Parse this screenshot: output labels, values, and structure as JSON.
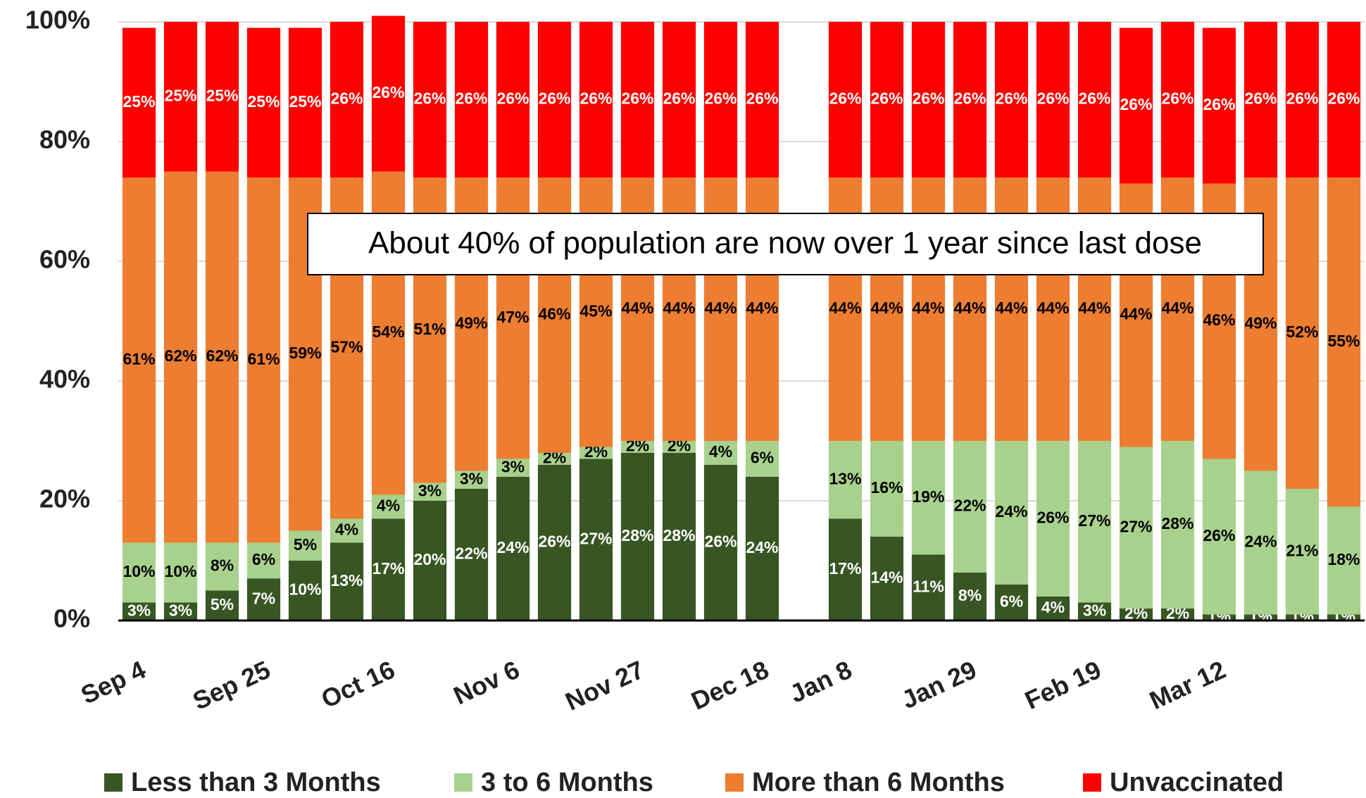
{
  "chart_data": {
    "type": "stacked_bar",
    "annotation": "About 40% of population are now over 1 year since last dose",
    "categories": [
      "Sep 4",
      null,
      null,
      "Sep 25",
      null,
      null,
      "Oct 16",
      null,
      null,
      "Nov 6",
      null,
      null,
      "Nov 27",
      null,
      null,
      "Dec 18",
      null,
      "Jan 8",
      null,
      null,
      "Jan 29",
      null,
      null,
      "Feb 19",
      null,
      null,
      "Mar 12",
      null,
      null,
      null
    ],
    "series": [
      {
        "name": "Less than 3 Months",
        "color": "#375623",
        "label_color": "#ffffff",
        "values": [
          3,
          3,
          5,
          7,
          10,
          13,
          17,
          20,
          22,
          24,
          26,
          27,
          28,
          28,
          26,
          24,
          null,
          17,
          14,
          11,
          8,
          6,
          4,
          3,
          2,
          2,
          1,
          1,
          1,
          1
        ],
        "value_labels": [
          "3%",
          "3%",
          "5%",
          "7%",
          "10%",
          "13%",
          "17%",
          "20%",
          "22%",
          "24%",
          "26%",
          "27%",
          "28%",
          "28%",
          "26%",
          "24%",
          null,
          "17%",
          "14%",
          "11%",
          "8%",
          "6%",
          "4%",
          "3%",
          "2%",
          "2%",
          "1%",
          "1%",
          "1%",
          "1%"
        ]
      },
      {
        "name": "3 to 6 Months",
        "color": "#a9d18e",
        "label_color": "#000000",
        "values": [
          10,
          10,
          8,
          6,
          5,
          4,
          4,
          3,
          3,
          3,
          2,
          2,
          2,
          2,
          4,
          6,
          null,
          13,
          16,
          19,
          22,
          24,
          26,
          27,
          27,
          28,
          26,
          24,
          21,
          18
        ],
        "value_labels": [
          "10%",
          "10%",
          "8%",
          "6%",
          "5%",
          "4%",
          "4%",
          "3%",
          "3%",
          "3%",
          "2%",
          "2%",
          "2%",
          "2%",
          "4%",
          "6%",
          null,
          "13%",
          "16%",
          "19%",
          "22%",
          "24%",
          "26%",
          "27%",
          "27%",
          "28%",
          "26%",
          "24%",
          "21%",
          "18%"
        ]
      },
      {
        "name": "More than 6 Months",
        "color": "#ed7d31",
        "label_color": "#000000",
        "values": [
          61,
          62,
          62,
          61,
          59,
          57,
          54,
          51,
          49,
          47,
          46,
          45,
          44,
          44,
          44,
          44,
          null,
          44,
          44,
          44,
          44,
          44,
          44,
          44,
          44,
          44,
          46,
          49,
          52,
          55
        ],
        "value_labels": [
          "61%",
          "62%",
          "62%",
          "61%",
          "59%",
          "57%",
          "54%",
          "51%",
          "49%",
          "47%",
          "46%",
          "45%",
          "44%",
          "44%",
          "44%",
          "44%",
          null,
          "44%",
          "44%",
          "44%",
          "44%",
          "44%",
          "44%",
          "44%",
          "44%",
          "44%",
          "46%",
          "49%",
          "52%",
          "55%"
        ]
      },
      {
        "name": "Unvaccinated",
        "color": "#ff0000",
        "label_color": "#ffffff",
        "values": [
          25,
          25,
          25,
          25,
          25,
          26,
          26,
          26,
          26,
          26,
          26,
          26,
          26,
          26,
          26,
          26,
          null,
          26,
          26,
          26,
          26,
          26,
          26,
          26,
          26,
          26,
          26,
          26,
          26,
          26
        ],
        "value_labels": [
          "25%",
          "25%",
          "25%",
          "25%",
          "25%",
          "26%",
          "26%",
          "26%",
          "26%",
          "26%",
          "26%",
          "26%",
          "26%",
          "26%",
          "26%",
          "26%",
          null,
          "26%",
          "26%",
          "26%",
          "26%",
          "26%",
          "26%",
          "26%",
          "26%",
          "26%",
          "26%",
          "26%",
          "26%",
          "26%"
        ]
      }
    ],
    "ylim": [
      0,
      100
    ],
    "yticks": [
      {
        "value": 0,
        "label": "0%"
      },
      {
        "value": 20,
        "label": "20%"
      },
      {
        "value": 40,
        "label": "40%"
      },
      {
        "value": 60,
        "label": "60%"
      },
      {
        "value": 80,
        "label": "80%"
      },
      {
        "value": 100,
        "label": "100%"
      }
    ],
    "grid": true,
    "legend": "bottom"
  }
}
